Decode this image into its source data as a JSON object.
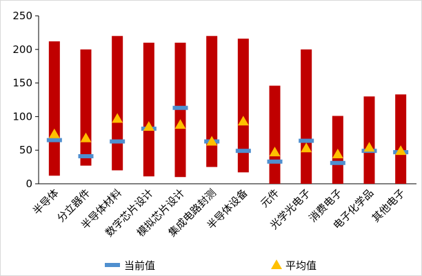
{
  "chart_data": {
    "type": "bar",
    "categories": [
      "半导体",
      "分立器件",
      "半导体材料",
      "数字芯片设计",
      "模拟芯片设计",
      "集成电路封测",
      "半导体设备",
      "元件",
      "光学光电子",
      "消费电子",
      "电子化学品",
      "其他电子"
    ],
    "range_bars": [
      {
        "low": 12,
        "high": 212
      },
      {
        "low": 27,
        "high": 200
      },
      {
        "low": 20,
        "high": 220
      },
      {
        "low": 11,
        "high": 210
      },
      {
        "low": 10,
        "high": 210
      },
      {
        "low": 25,
        "high": 220
      },
      {
        "low": 17,
        "high": 216
      },
      {
        "low": 0,
        "high": 146
      },
      {
        "low": 0,
        "high": 200
      },
      {
        "low": 0,
        "high": 101
      },
      {
        "low": 0,
        "high": 130
      },
      {
        "low": 0,
        "high": 133
      }
    ],
    "series": [
      {
        "name": "当前值",
        "values": [
          65,
          41,
          63,
          82,
          113,
          63,
          49,
          33,
          64,
          31,
          49,
          47
        ]
      },
      {
        "name": "平均值",
        "values": [
          74,
          68,
          97,
          85,
          88,
          63,
          93,
          47,
          53,
          44,
          54,
          49
        ]
      }
    ],
    "ylim": [
      0,
      250
    ],
    "yticks": [
      "0",
      "50",
      "100",
      "150",
      "200",
      "250"
    ],
    "grid": false,
    "legend_position": "bottom",
    "colors": {
      "range_bar": "#c00000",
      "current": "#4f8fcf",
      "average": "#ffc000"
    }
  }
}
